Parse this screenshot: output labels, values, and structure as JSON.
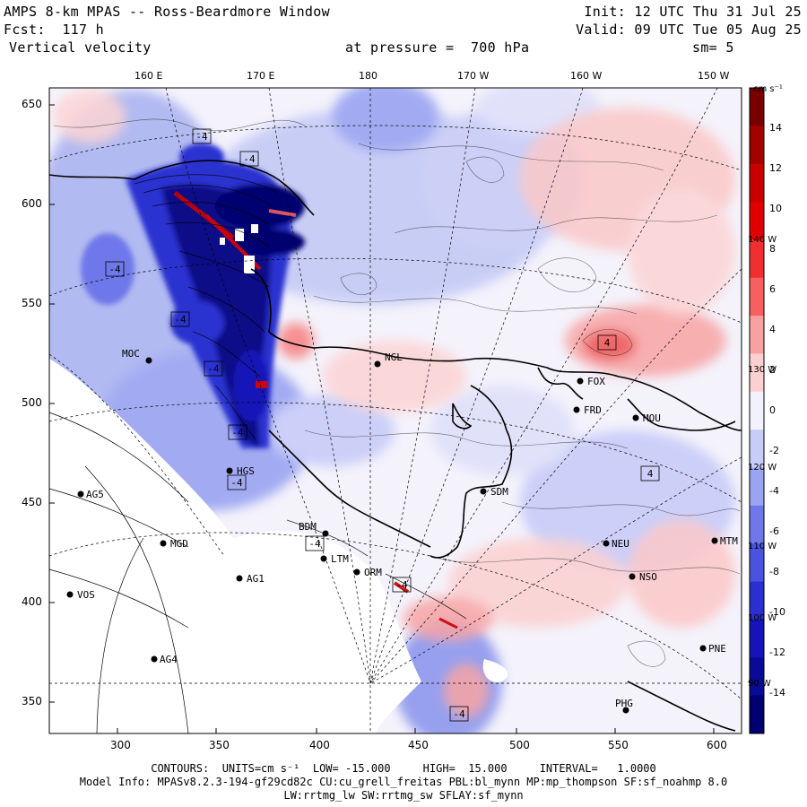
{
  "header": {
    "title": "AMPS 8-km MPAS -- Ross-Beardmore Window",
    "init": "Init: 12 UTC Thu 31 Jul 25",
    "fcst": "Fcst:  117 h",
    "valid": "Valid: 09 UTC Tue 05 Aug 25",
    "field": "Vertical velocity",
    "level": "at pressure =  700 hPa",
    "smooth": "sm= 5"
  },
  "axes": {
    "x_ticks": [
      "300",
      "350",
      "400",
      "450",
      "500",
      "550",
      "600"
    ],
    "y_ticks": [
      "650",
      "600",
      "550",
      "500",
      "450",
      "400",
      "350"
    ],
    "lon_top": [
      "160 E",
      "170 E",
      "180",
      "170 W",
      "160 W",
      "150 W"
    ],
    "lon_right": [
      "140 W",
      "130 W",
      "120 W",
      "110 W",
      "100 W",
      "90 W"
    ]
  },
  "colorbar": {
    "units": "cm s⁻¹",
    "labels": [
      "14",
      "12",
      "10",
      "8",
      "6",
      "4",
      "2",
      "0",
      "-2",
      "-4",
      "-6",
      "-8",
      "-10",
      "-12",
      "-14"
    ],
    "colors": [
      "#7a0000",
      "#a30000",
      "#c80000",
      "#e00000",
      "#f03030",
      "#f86060",
      "#fba0a0",
      "#fcd0d0",
      "#f2f2ff",
      "#c8ccf8",
      "#9aa4f2",
      "#6e78ea",
      "#4a52e0",
      "#2a30d0",
      "#1414b8",
      "#0a0a98",
      "#000070"
    ]
  },
  "stations": [
    {
      "name": "MOC"
    },
    {
      "name": "NGL"
    },
    {
      "name": "FOX"
    },
    {
      "name": "FRD"
    },
    {
      "name": "MOU"
    },
    {
      "name": "SDM"
    },
    {
      "name": "AG5"
    },
    {
      "name": "MGD"
    },
    {
      "name": "AG1"
    },
    {
      "name": "VOS"
    },
    {
      "name": "AG4"
    },
    {
      "name": "BDM"
    },
    {
      "name": "ORM"
    },
    {
      "name": "NEU"
    },
    {
      "name": "NSO"
    },
    {
      "name": "MTM"
    },
    {
      "name": "PNE"
    },
    {
      "name": "PHG"
    },
    {
      "name": "LTM"
    },
    {
      "name": "HGS"
    }
  ],
  "contour_labels": [
    "-4",
    "-4",
    "-4",
    "-4",
    "-4",
    "-4",
    "-4",
    "4",
    "4",
    "-4",
    "-4",
    "-4"
  ],
  "footer": {
    "contours": "CONTOURS:  UNITS=cm s⁻¹  LOW= -15.000     HIGH=  15.000     INTERVAL=   1.0000",
    "model": "Model Info: MPASv8.2.3-194-gf29cd82c CU:cu_grell_freitas PBL:bl_mynn MP:mp_thompson SF:sf_noahmp 8.0",
    "physics": "LW:rrtmg_lw SW:rrtmg_sw SFLAY:sf_mynn"
  }
}
